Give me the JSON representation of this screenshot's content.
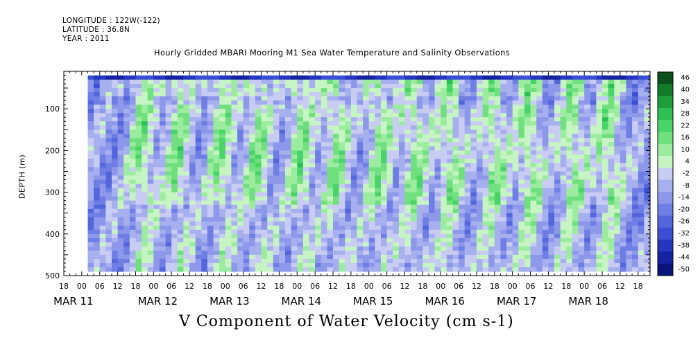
{
  "header": {
    "longitude": "LONGITUDE : 122W(-122)",
    "latitude": "LATITUDE : 36.8N",
    "year": "YEAR : 2011"
  },
  "chart_data": {
    "type": "heatmap",
    "title": "Hourly Gridded MBARI Mooring M1 Sea Water Temperature and Salinity Observations",
    "variable_label": "V Component of Water Velocity (cm s-1)",
    "ylabel": "DEPTH (m)",
    "y_range": [
      500,
      10
    ],
    "y_ticks": [
      100,
      200,
      300,
      400,
      500
    ],
    "x_range_hours": [
      "MAR 10 18:00",
      "MAR 18 22:00"
    ],
    "x_hour_ticks": [
      "18",
      "00",
      "06",
      "12",
      "18",
      "00",
      "06",
      "12",
      "18",
      "00",
      "06",
      "12",
      "18",
      "00",
      "06",
      "12",
      "18",
      "00",
      "06",
      "12",
      "18",
      "00",
      "06",
      "12",
      "18",
      "00",
      "06",
      "12",
      "18",
      "00",
      "06",
      "12",
      "18"
    ],
    "x_day_labels": [
      "MAR 11",
      "MAR 12",
      "MAR 13",
      "MAR 14",
      "MAR 15",
      "MAR 16",
      "MAR 17",
      "MAR 18"
    ],
    "data_extent": {
      "start": "MAR 11 02:00",
      "end": "MAR 18 22:00",
      "depth_top": 20,
      "depth_bottom": 485
    },
    "colorbar": {
      "labels": [
        46,
        40,
        34,
        28,
        22,
        16,
        10,
        4,
        -2,
        -8,
        -14,
        -20,
        -26,
        -32,
        -38,
        -44,
        -50
      ],
      "range": [
        -50,
        50
      ],
      "colors": [
        "#0b4f1a",
        "#127a2b",
        "#1f9e3c",
        "#2ebf52",
        "#49d468",
        "#70e07f",
        "#9ceca0",
        "#c6f4c2",
        "#c8ccf2",
        "#a7b0ee",
        "#8e98ea",
        "#6f7ee4",
        "#5466dc",
        "#3a4fd2",
        "#2536bf",
        "#1523a0",
        "#0a137a"
      ]
    },
    "field_pattern": {
      "surface_layer_value": -35,
      "green_columns_center_days": [
        11.8,
        12.3,
        12.9,
        13.4,
        14.0,
        14.5,
        15.1,
        15.6,
        16.1,
        16.7,
        17.2,
        17.8,
        18.3
      ],
      "green_peak_value": 18,
      "background_value": -10
    }
  }
}
